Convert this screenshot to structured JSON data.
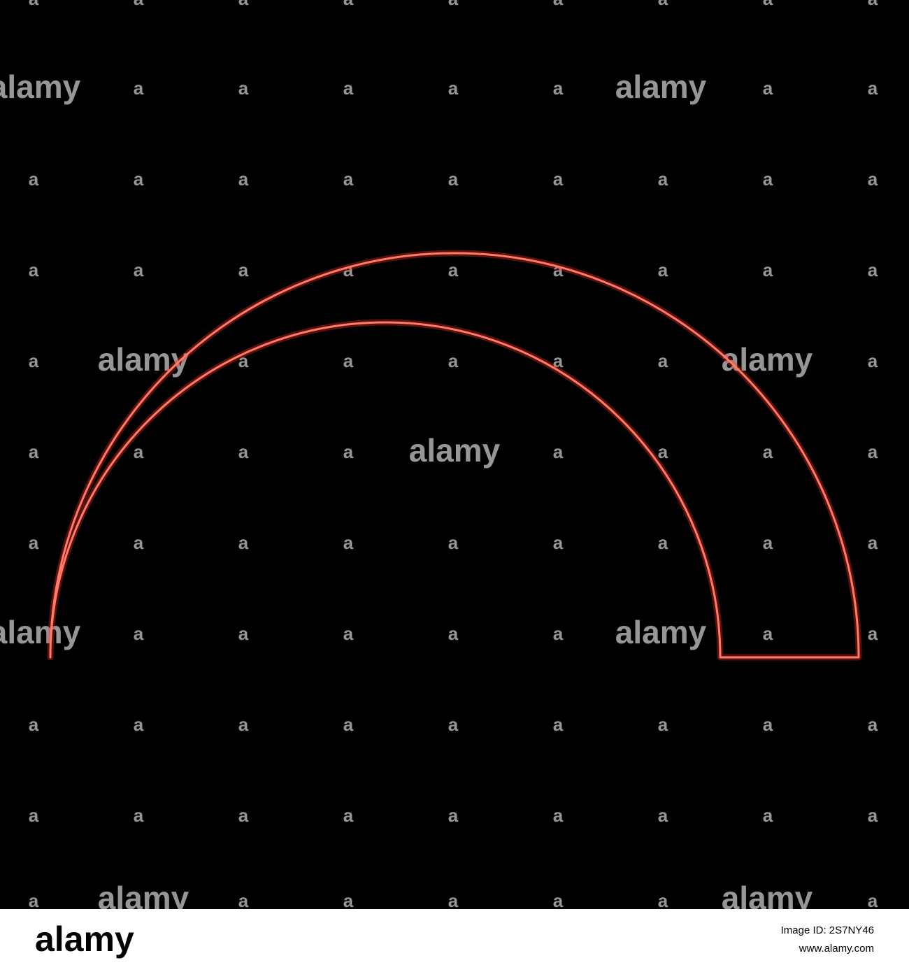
{
  "watermark": {
    "word": "alamy",
    "letter": "a"
  },
  "footer": {
    "logo": "alamy",
    "image_id": "Image ID: 2S7NY46",
    "url": "www.alamy.com"
  }
}
